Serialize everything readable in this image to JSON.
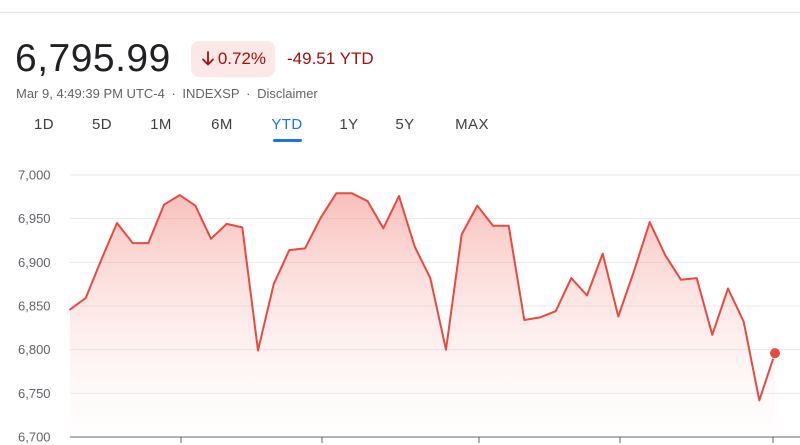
{
  "quote": {
    "price": "6,795.99",
    "change_pct": "0.72%",
    "change_abs": "-49.51 YTD",
    "timestamp": "Mar 9, 4:49:39 PM UTC-4",
    "separator": "·",
    "exchange": "INDEXSP",
    "disclaimer": "Disclaimer",
    "direction_icon": "arrow-down-icon"
  },
  "tabs": [
    {
      "label": "1D",
      "active": false
    },
    {
      "label": "5D",
      "active": false
    },
    {
      "label": "1M",
      "active": false
    },
    {
      "label": "6M",
      "active": false
    },
    {
      "label": "YTD",
      "active": true
    },
    {
      "label": "1Y",
      "active": false
    },
    {
      "label": "5Y",
      "active": false
    },
    {
      "label": "MAX",
      "active": false
    }
  ],
  "colors": {
    "negative": "#a50e0e",
    "negative_bg": "#fce8e6",
    "line": "#e84a3f",
    "accent": "#1a73e8"
  },
  "chart_data": {
    "type": "area",
    "y_ticks": [
      "7,000",
      "6,950",
      "6,900",
      "6,850",
      "6,800",
      "6,750",
      "6,700"
    ],
    "y_tick_values": [
      7000,
      6950,
      6900,
      6850,
      6800,
      6750,
      6700
    ],
    "ylim": [
      6700,
      7000
    ],
    "grid": true,
    "values": [
      6846,
      6859,
      6903,
      6945,
      6922,
      6922,
      6966,
      6977,
      6965,
      6927,
      6944,
      6940,
      6799,
      6875,
      6914,
      6916,
      6951,
      6979,
      6979,
      6970,
      6939,
      6976,
      6918,
      6882,
      6800,
      6932,
      6965,
      6942,
      6942,
      6834,
      6837,
      6844,
      6882,
      6862,
      6910,
      6838,
      6890,
      6946,
      6908,
      6880,
      6882,
      6817,
      6870,
      6832,
      6742,
      6796
    ],
    "last_value": 6796
  }
}
